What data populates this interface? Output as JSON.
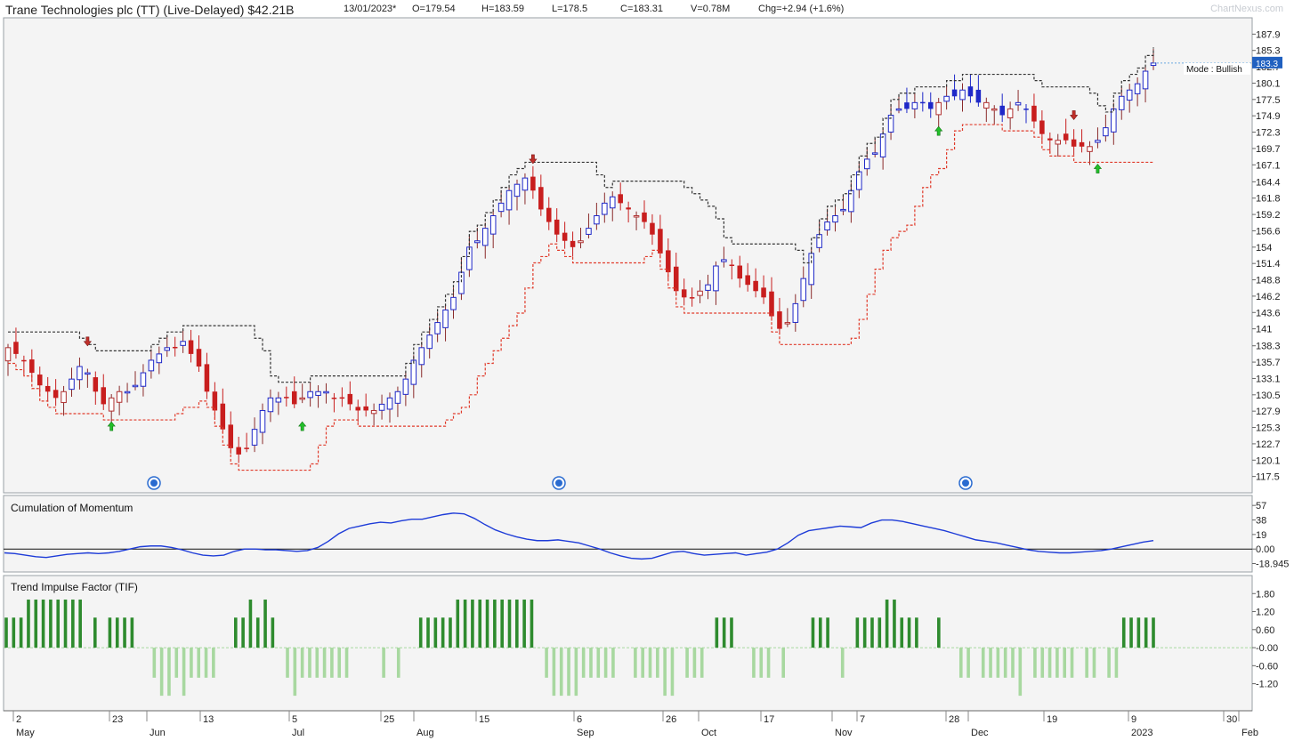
{
  "header": {
    "title": "Trane Technologies plc (TT) (Live-Delayed) $42.21B",
    "date": "13/01/2023*",
    "open": "O=179.54",
    "high": "H=183.59",
    "low": "L=178.5",
    "close": "C=183.31",
    "volume": "V=0.78M",
    "change": "Chg=+2.94 (+1.6%)",
    "watermark": "ChartNexus.com"
  },
  "colors": {
    "up_hollow": "#b03030",
    "down_red": "#c81e1e",
    "blue": "#1e28c8",
    "resistance": "#333333",
    "support": "#e03a2a",
    "buy_arrow": "#22c02a",
    "sell_arrow": "#c0302a",
    "momentum_line": "#1e3cd8",
    "tif_dark": "#2e8b2e",
    "tif_light": "#a8d8a0"
  },
  "chart_data": [
    {
      "type": "candlestick",
      "title": "",
      "mode_label": "Mode : Bullish",
      "last_price_label": "183.3",
      "y_ticks": [
        "187.9",
        "185.3",
        "182.7",
        "180.1",
        "177.5",
        "174.9",
        "172.3",
        "169.7",
        "167.1",
        "164.4",
        "161.8",
        "159.2",
        "156.6",
        "154",
        "151.4",
        "148.8",
        "146.2",
        "143.6",
        "141",
        "138.3",
        "135.7",
        "133.1",
        "130.5",
        "127.9",
        "125.3",
        "122.7",
        "120.1",
        "117.5"
      ],
      "ylim": [
        114.9,
        190.5
      ],
      "x_labels": [
        {
          "day": "2",
          "month": "May"
        },
        {
          "day": "23",
          "month": ""
        },
        {
          "day": "",
          "month": "Jun"
        },
        {
          "day": "13",
          "month": ""
        },
        {
          "day": "5",
          "month": "Jul"
        },
        {
          "day": "25",
          "month": ""
        },
        {
          "day": "",
          "month": "Aug"
        },
        {
          "day": "15",
          "month": ""
        },
        {
          "day": "6",
          "month": "Sep"
        },
        {
          "day": "26",
          "month": ""
        },
        {
          "day": "",
          "month": "Oct"
        },
        {
          "day": "17",
          "month": ""
        },
        {
          "day": "",
          "month": "Nov"
        },
        {
          "day": "7",
          "month": ""
        },
        {
          "day": "28",
          "month": ""
        },
        {
          "day": "",
          "month": "Dec"
        },
        {
          "day": "19",
          "month": ""
        },
        {
          "day": "9",
          "month": "2023"
        },
        {
          "day": "30",
          "month": ""
        },
        {
          "day": "",
          "month": "Feb"
        }
      ],
      "close_path": [
        138,
        137,
        136,
        134,
        132,
        131,
        130,
        131,
        133,
        135,
        134,
        131,
        129,
        130,
        131,
        131,
        132,
        134,
        136,
        137,
        138,
        138,
        139,
        137,
        135,
        131,
        128,
        125,
        122,
        121,
        122,
        125,
        128,
        130,
        130,
        130,
        129,
        130,
        131,
        131,
        131,
        130,
        130,
        129,
        128,
        128,
        128,
        129,
        130,
        131,
        133,
        136,
        138,
        140,
        142,
        144,
        146,
        150,
        154,
        155,
        157,
        159,
        161,
        163,
        164,
        165,
        163,
        160,
        158,
        156,
        155,
        154,
        155,
        157,
        159,
        161,
        162,
        161,
        160,
        159,
        158,
        156,
        153,
        150,
        147,
        146,
        146,
        147,
        148,
        151,
        152,
        151,
        149,
        148,
        147,
        146,
        143,
        141,
        142,
        145,
        149,
        153,
        156,
        158,
        159,
        160,
        163,
        166,
        168,
        169,
        172,
        175,
        176,
        176,
        177,
        177,
        176,
        177,
        178,
        178,
        179,
        178,
        177,
        177,
        176,
        175,
        176,
        177,
        176,
        174,
        172,
        171,
        171,
        171,
        170,
        170,
        170,
        171,
        173,
        176,
        178,
        179,
        180,
        182,
        183.3
      ]
    },
    {
      "type": "line",
      "title": "Cumulation of Momentum",
      "y_ticks": [
        "57",
        "38",
        "19",
        "0.00",
        "-18.945"
      ],
      "ylim": [
        -30,
        70
      ],
      "values": [
        -5,
        -6,
        -8,
        -10,
        -11,
        -9,
        -7,
        -6,
        -5,
        -6,
        -5,
        -3,
        0,
        3,
        4,
        4,
        2,
        -1,
        -5,
        -8,
        -9,
        -8,
        -3,
        0,
        0,
        -1,
        -1,
        -2,
        -3,
        -2,
        2,
        10,
        20,
        27,
        30,
        33,
        35,
        34,
        37,
        39,
        39,
        42,
        45,
        47,
        46,
        40,
        32,
        25,
        20,
        16,
        13,
        11,
        11,
        12,
        10,
        8,
        4,
        0,
        -5,
        -9,
        -12,
        -13,
        -12,
        -8,
        -4,
        -3,
        -6,
        -8,
        -7,
        -6,
        -5,
        -8,
        -6,
        -4,
        0,
        8,
        18,
        24,
        26,
        28,
        30,
        29,
        28,
        34,
        38,
        38,
        36,
        33,
        30,
        27,
        24,
        20,
        16,
        12,
        10,
        8,
        5,
        2,
        -1,
        -3,
        -4,
        -5,
        -5,
        -4,
        -3,
        -2,
        0,
        3,
        6,
        9,
        11
      ]
    },
    {
      "type": "bar",
      "title": "Trend Impulse Factor (TIF)",
      "y_ticks": [
        "1.80",
        "1.20",
        "0.60",
        "-0.00",
        "-0.60",
        "-1.20"
      ],
      "ylim": [
        -2.1,
        2.4
      ],
      "values": [
        1,
        1,
        1,
        1.6,
        1.6,
        1.6,
        1.6,
        1.6,
        1.6,
        1.6,
        1.6,
        0,
        1,
        0,
        1,
        1,
        1,
        1,
        0,
        0,
        -1,
        -1.6,
        -1.6,
        -1,
        -1.6,
        -1,
        -1,
        -1,
        -1,
        0,
        0,
        1,
        1,
        1.6,
        1,
        1.6,
        1,
        0,
        -1,
        -1.6,
        -1,
        -1,
        -1,
        -1,
        -1,
        -1,
        -1,
        0,
        0,
        0,
        0,
        -1,
        0,
        -1,
        0,
        0,
        1,
        1,
        1,
        1,
        1,
        1.6,
        1.6,
        1.6,
        1.6,
        1.6,
        1.6,
        1.6,
        1.6,
        1.6,
        1.6,
        1.6,
        0,
        -1,
        -1.6,
        -1.6,
        -1.6,
        -1.6,
        -1,
        -1,
        -1,
        -1,
        -1,
        0,
        0,
        -1,
        -1,
        -1,
        -1,
        -1.6,
        -1.6,
        0,
        -1,
        -1,
        -1,
        0,
        1,
        1,
        1,
        0,
        0,
        -1,
        -1,
        -1,
        0,
        -1,
        0,
        0,
        0,
        1,
        1,
        1,
        0,
        -1,
        0,
        1,
        1,
        1,
        1,
        1.6,
        1.6,
        1,
        1,
        1,
        0,
        0,
        1,
        0,
        0,
        -1,
        -1,
        0,
        -1,
        -1,
        -1,
        -1,
        -1,
        -1.6,
        0,
        -1,
        -1,
        -1,
        -1,
        -1,
        -1,
        0,
        -1,
        -1,
        0,
        -1,
        -1,
        1,
        1,
        1,
        1,
        1
      ]
    }
  ]
}
